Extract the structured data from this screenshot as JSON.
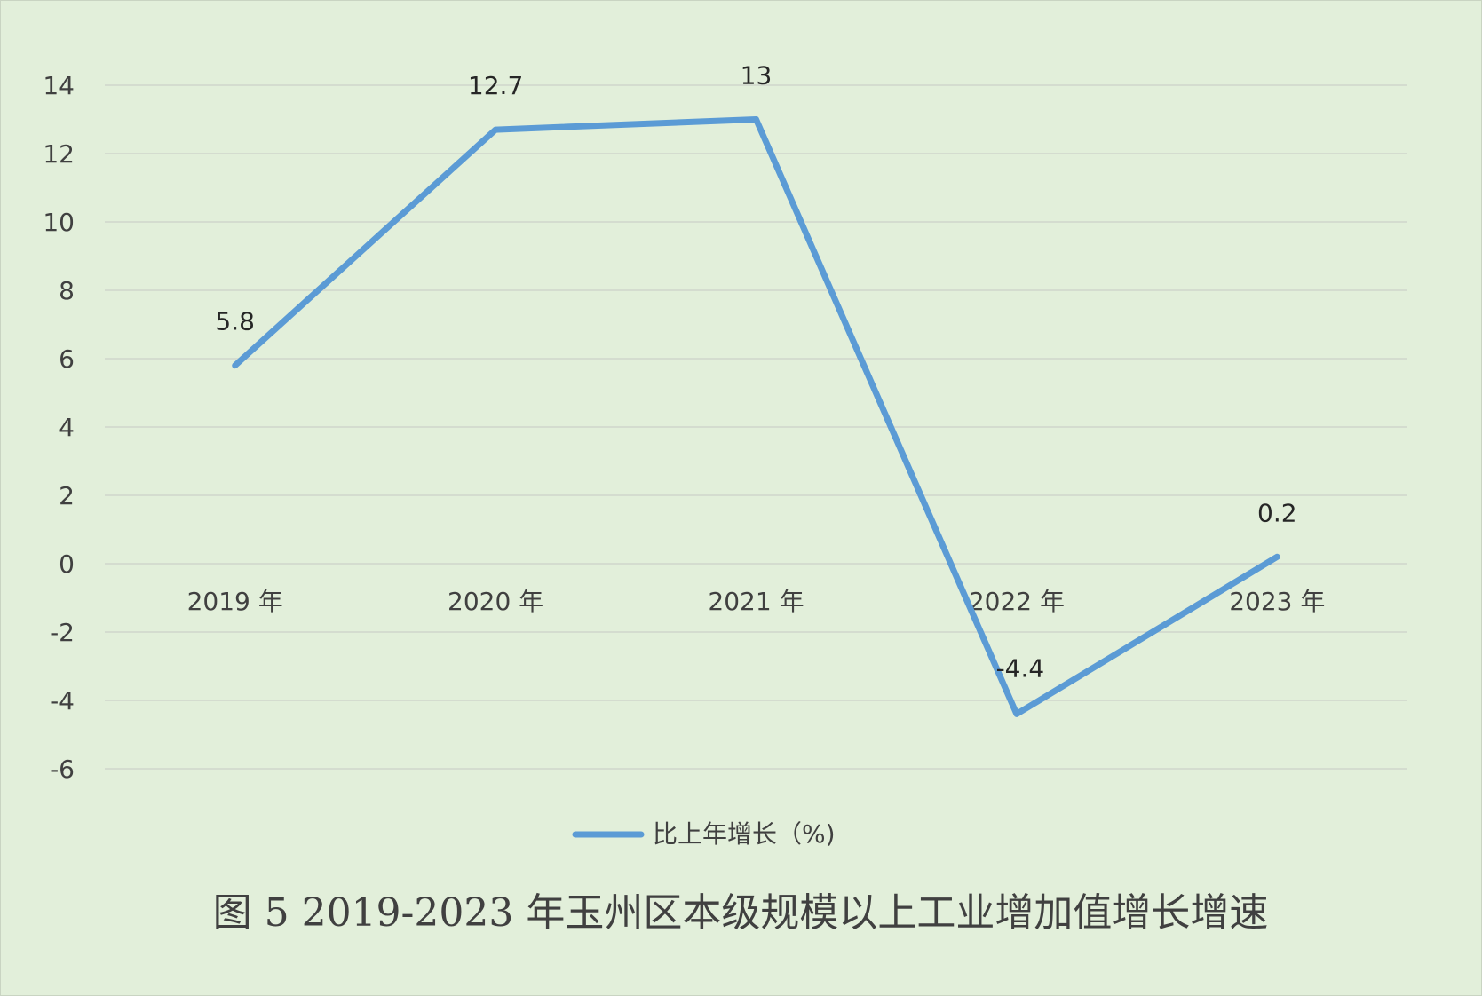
{
  "chart_data": {
    "type": "line",
    "title": "图 5  2019-2023 年玉州区本级规模以上工业增加值增长增速",
    "categories": [
      "2019 年",
      "2020 年",
      "2021 年",
      "2022 年",
      "2023 年"
    ],
    "series": [
      {
        "name": "比上年增长（%)",
        "values": [
          5.8,
          12.7,
          13,
          -4.4,
          0.2
        ],
        "labels": [
          "5.8",
          "12.7",
          "13",
          "-4.4",
          "0.2"
        ],
        "color": "#5b9bd5"
      }
    ],
    "y_ticks": [
      "14",
      "12",
      "10",
      "8",
      "6",
      "4",
      "2",
      "0",
      "-2",
      "-4",
      "-6"
    ],
    "ylim": [
      -6,
      14
    ],
    "xlabel": "",
    "ylabel": "",
    "grid": true,
    "legend_position": "bottom",
    "background_color": "#e2efda"
  }
}
